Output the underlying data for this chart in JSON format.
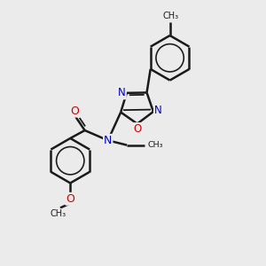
{
  "bg_color": "#ebebeb",
  "bond_color": "#1a1a1a",
  "N_color": "#0000cc",
  "O_color": "#cc0000",
  "lw": 1.8,
  "lw_inner": 1.3,
  "fig_w": 3.0,
  "fig_h": 3.0,
  "dpi": 100,
  "xlim": [
    0,
    10
  ],
  "ylim": [
    0,
    10
  ]
}
